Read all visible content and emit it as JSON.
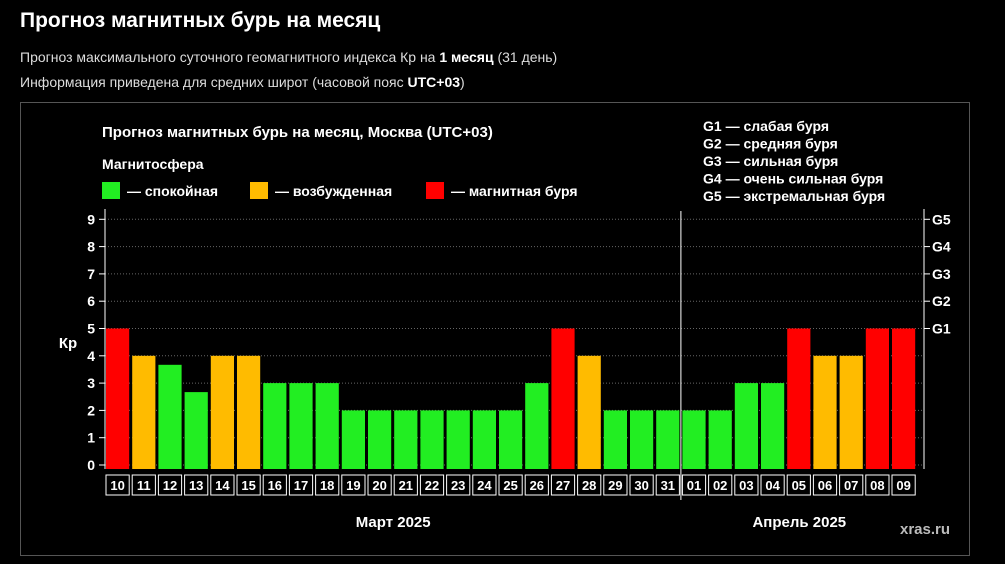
{
  "header": {
    "title": "Прогноз магнитных бурь на месяц",
    "subtitle1_pre": "Прогноз максимального суточного геомагнитного индекса Кр на ",
    "subtitle1_bold": "1 месяц",
    "subtitle1_post": " (31 день)",
    "subtitle2_pre": "Информация приведена для средних широт (часовой пояс ",
    "subtitle2_bold": "UTC+03",
    "subtitle2_post": ")"
  },
  "colors": {
    "calm": "#22ee22",
    "excited": "#ffbb00",
    "storm": "#ff0000"
  },
  "chart_data": {
    "type": "bar",
    "title": "Прогноз магнитных бурь на месяц, Москва (UTC+03)",
    "legend_title": "Магнитосфера",
    "legend": [
      {
        "label": "— спокойная",
        "status": "calm"
      },
      {
        "label": "— возбужденная",
        "status": "excited"
      },
      {
        "label": "— магнитная буря",
        "status": "storm"
      }
    ],
    "g_scale": [
      "G1 — слабая буря",
      "G2 — средняя буря",
      "G3 — сильная буря",
      "G4 — очень сильная буря",
      "G5 — экстремальная буря"
    ],
    "ylabel": "Кр",
    "ylim": [
      0,
      9
    ],
    "y_ticks": [
      0,
      1,
      2,
      3,
      4,
      5,
      6,
      7,
      8,
      9
    ],
    "right_ticks": [
      {
        "value": 5,
        "label": "G1"
      },
      {
        "value": 6,
        "label": "G2"
      },
      {
        "value": 7,
        "label": "G3"
      },
      {
        "value": 8,
        "label": "G4"
      },
      {
        "value": 9,
        "label": "G5"
      }
    ],
    "grid": true,
    "categories": [
      "10",
      "11",
      "12",
      "13",
      "14",
      "15",
      "16",
      "17",
      "18",
      "19",
      "20",
      "21",
      "22",
      "23",
      "24",
      "25",
      "26",
      "27",
      "28",
      "29",
      "30",
      "31",
      "01",
      "02",
      "03",
      "04",
      "05",
      "06",
      "07",
      "08",
      "09"
    ],
    "values": [
      5,
      4,
      3.67,
      2.67,
      4,
      4,
      3,
      3,
      3,
      2,
      2,
      2,
      2,
      2,
      2,
      2,
      3,
      5,
      4,
      2,
      2,
      2,
      2,
      2,
      3,
      3,
      5,
      4,
      4,
      5,
      5
    ],
    "status": [
      "storm",
      "excited",
      "calm",
      "calm",
      "excited",
      "excited",
      "calm",
      "calm",
      "calm",
      "calm",
      "calm",
      "calm",
      "calm",
      "calm",
      "calm",
      "calm",
      "calm",
      "storm",
      "excited",
      "calm",
      "calm",
      "calm",
      "calm",
      "calm",
      "calm",
      "calm",
      "storm",
      "excited",
      "excited",
      "storm",
      "storm"
    ],
    "months": [
      {
        "label": "Март 2025",
        "first_index": 0,
        "last_index": 21
      },
      {
        "label": "Апрель 2025",
        "first_index": 22,
        "last_index": 30
      }
    ]
  },
  "watermark": "xras.ru"
}
